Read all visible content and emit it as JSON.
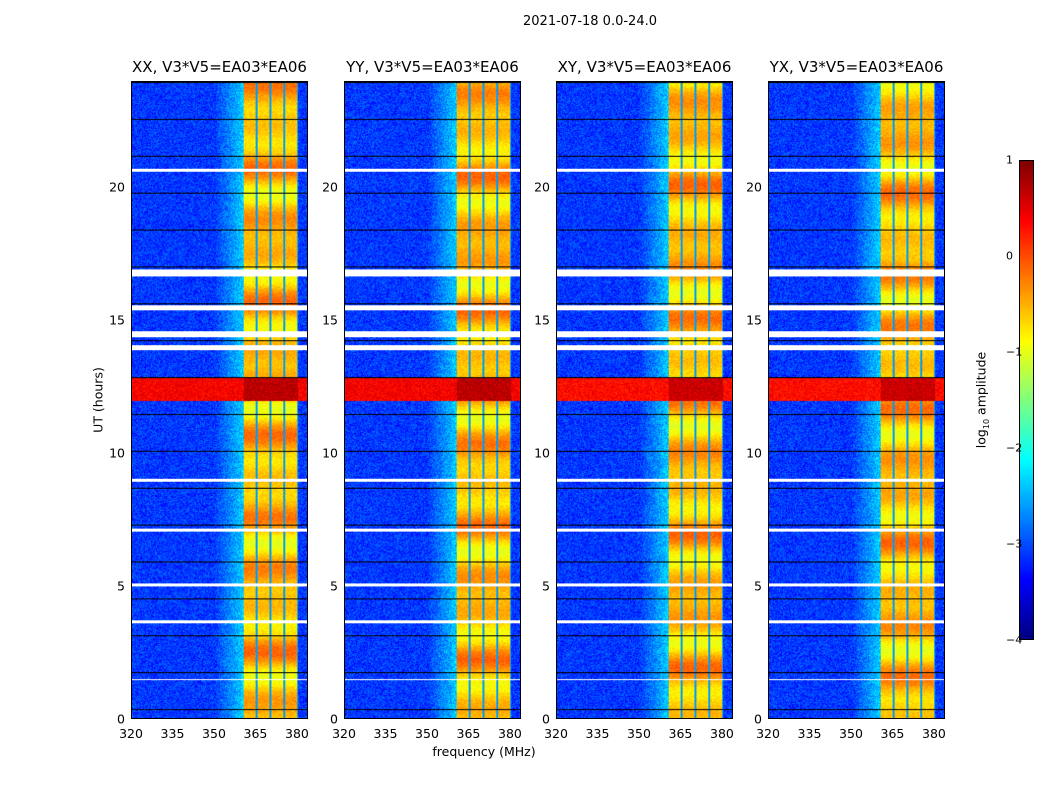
{
  "suptitle": "2021-07-18 0.0-24.0",
  "xlabel": "frequency (MHz)",
  "ylabel": "UT (hours)",
  "chart_data": {
    "type": "heatmap",
    "xlim": [
      320,
      384
    ],
    "ylim": [
      0,
      24
    ],
    "xticks": [
      "320",
      "335",
      "350",
      "365",
      "380"
    ],
    "xtick_values": [
      320,
      335,
      350,
      365,
      380
    ],
    "yticks": [
      "0",
      "5",
      "10",
      "15",
      "20"
    ],
    "ytick_values": [
      0,
      5,
      10,
      15,
      20
    ],
    "panels": [
      {
        "title": "XX, V3*V5=EA03*EA06"
      },
      {
        "title": "YY, V3*V5=EA03*EA06"
      },
      {
        "title": "XY, V3*V5=EA03*EA06"
      },
      {
        "title": "YX, V3*V5=EA03*EA06"
      }
    ],
    "rfi_band_mhz": [
      360.5,
      380.5
    ],
    "rfi_subband_edges_mhz": [
      360.5,
      365.5,
      370.5,
      375.5,
      380.5
    ],
    "rfi_burst_hours": [
      12.0,
      12.9
    ],
    "flagged_hours": [
      [
        20.65,
        20.75
      ],
      [
        16.7,
        16.95
      ],
      [
        15.4,
        15.6
      ],
      [
        14.4,
        14.6
      ],
      [
        13.9,
        14.1
      ],
      [
        8.95,
        9.05
      ],
      [
        7.05,
        7.15
      ],
      [
        5.0,
        5.1
      ],
      [
        3.6,
        3.7
      ],
      [
        1.45,
        1.5
      ]
    ],
    "colorbar": {
      "label": "log10 amplitude",
      "range": [
        -4,
        1
      ],
      "ticks": [
        "1",
        "0",
        "−1",
        "−2",
        "−3",
        "−4"
      ],
      "tick_values": [
        1,
        0,
        -1,
        -2,
        -3,
        -4
      ],
      "colormap": "jet"
    }
  }
}
